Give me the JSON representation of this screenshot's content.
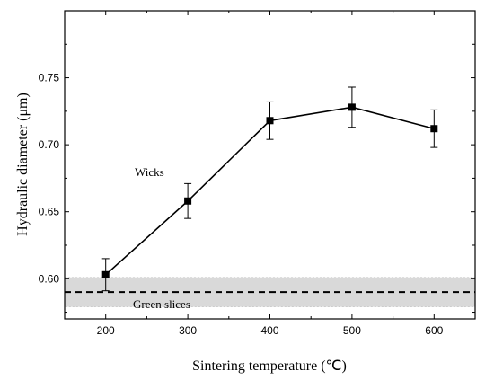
{
  "chart_data": {
    "type": "line",
    "xlabel": "Sintering temperature (℃)",
    "ylabel": "Hydraulic diameter (μm)",
    "xlim": [
      150,
      650
    ],
    "ylim": [
      0.57,
      0.8
    ],
    "xticks": [
      "200",
      "300",
      "400",
      "500",
      "600"
    ],
    "yticks": [
      "0.60",
      "0.65",
      "0.70",
      "0.75"
    ],
    "grid": false,
    "series": [
      {
        "name": "Wicks",
        "x": [
          200,
          300,
          400,
          500,
          600
        ],
        "y": [
          0.603,
          0.658,
          0.718,
          0.728,
          0.712
        ],
        "err": [
          0.012,
          0.013,
          0.014,
          0.015,
          0.014
        ],
        "color": "#000000",
        "marker": "square"
      }
    ],
    "reference": {
      "label": "Green slices",
      "value": 0.59,
      "band": [
        0.579,
        0.601
      ],
      "line_style": "dashed",
      "band_color": "#d9d9d9"
    }
  }
}
